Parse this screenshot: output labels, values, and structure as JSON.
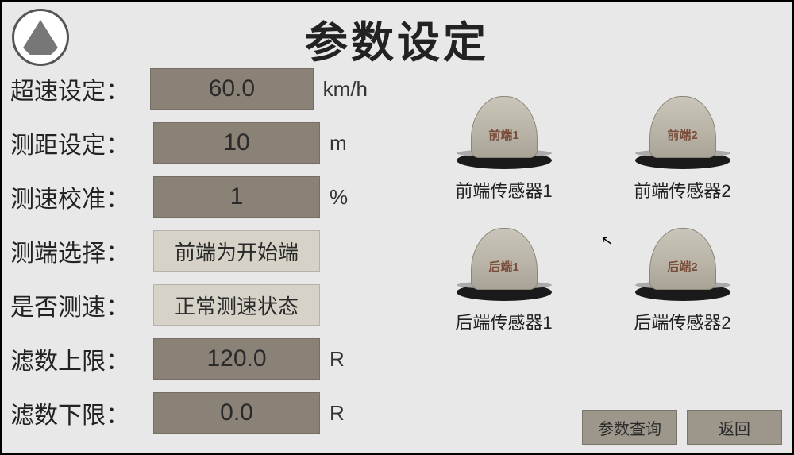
{
  "title": "参数设定",
  "colors": {
    "background": "#e8e8e8",
    "dark_input": "#8a8276",
    "light_input": "#d6d2c7",
    "button_bg": "#9c978a",
    "text": "#222222",
    "dome_label": "#7a4d3a"
  },
  "params": {
    "overspeed": {
      "label": "超速设定：",
      "value": "60.0",
      "unit": "km/h",
      "style": "dark"
    },
    "distance": {
      "label": "测距设定：",
      "value": "10",
      "unit": "m",
      "style": "dark"
    },
    "calib": {
      "label": "测速校准：",
      "value": "1",
      "unit": "%",
      "style": "dark"
    },
    "endsel": {
      "label": "测端选择：",
      "value": "前端为开始端",
      "unit": "",
      "style": "light"
    },
    "measure": {
      "label": "是否测速：",
      "value": "正常测速状态",
      "unit": "",
      "style": "light"
    },
    "upper": {
      "label": "滤数上限：",
      "value": "120.0",
      "unit": "R",
      "style": "dark"
    },
    "lower": {
      "label": "滤数下限：",
      "value": "0.0",
      "unit": "R",
      "style": "dark"
    }
  },
  "sensors": {
    "front1": {
      "dome": "前端1",
      "label": "前端传感器1"
    },
    "front2": {
      "dome": "前端2",
      "label": "前端传感器2"
    },
    "rear1": {
      "dome": "后端1",
      "label": "后端传感器1"
    },
    "rear2": {
      "dome": "后端2",
      "label": "后端传感器2"
    }
  },
  "buttons": {
    "query": "参数查询",
    "back": "返回"
  }
}
